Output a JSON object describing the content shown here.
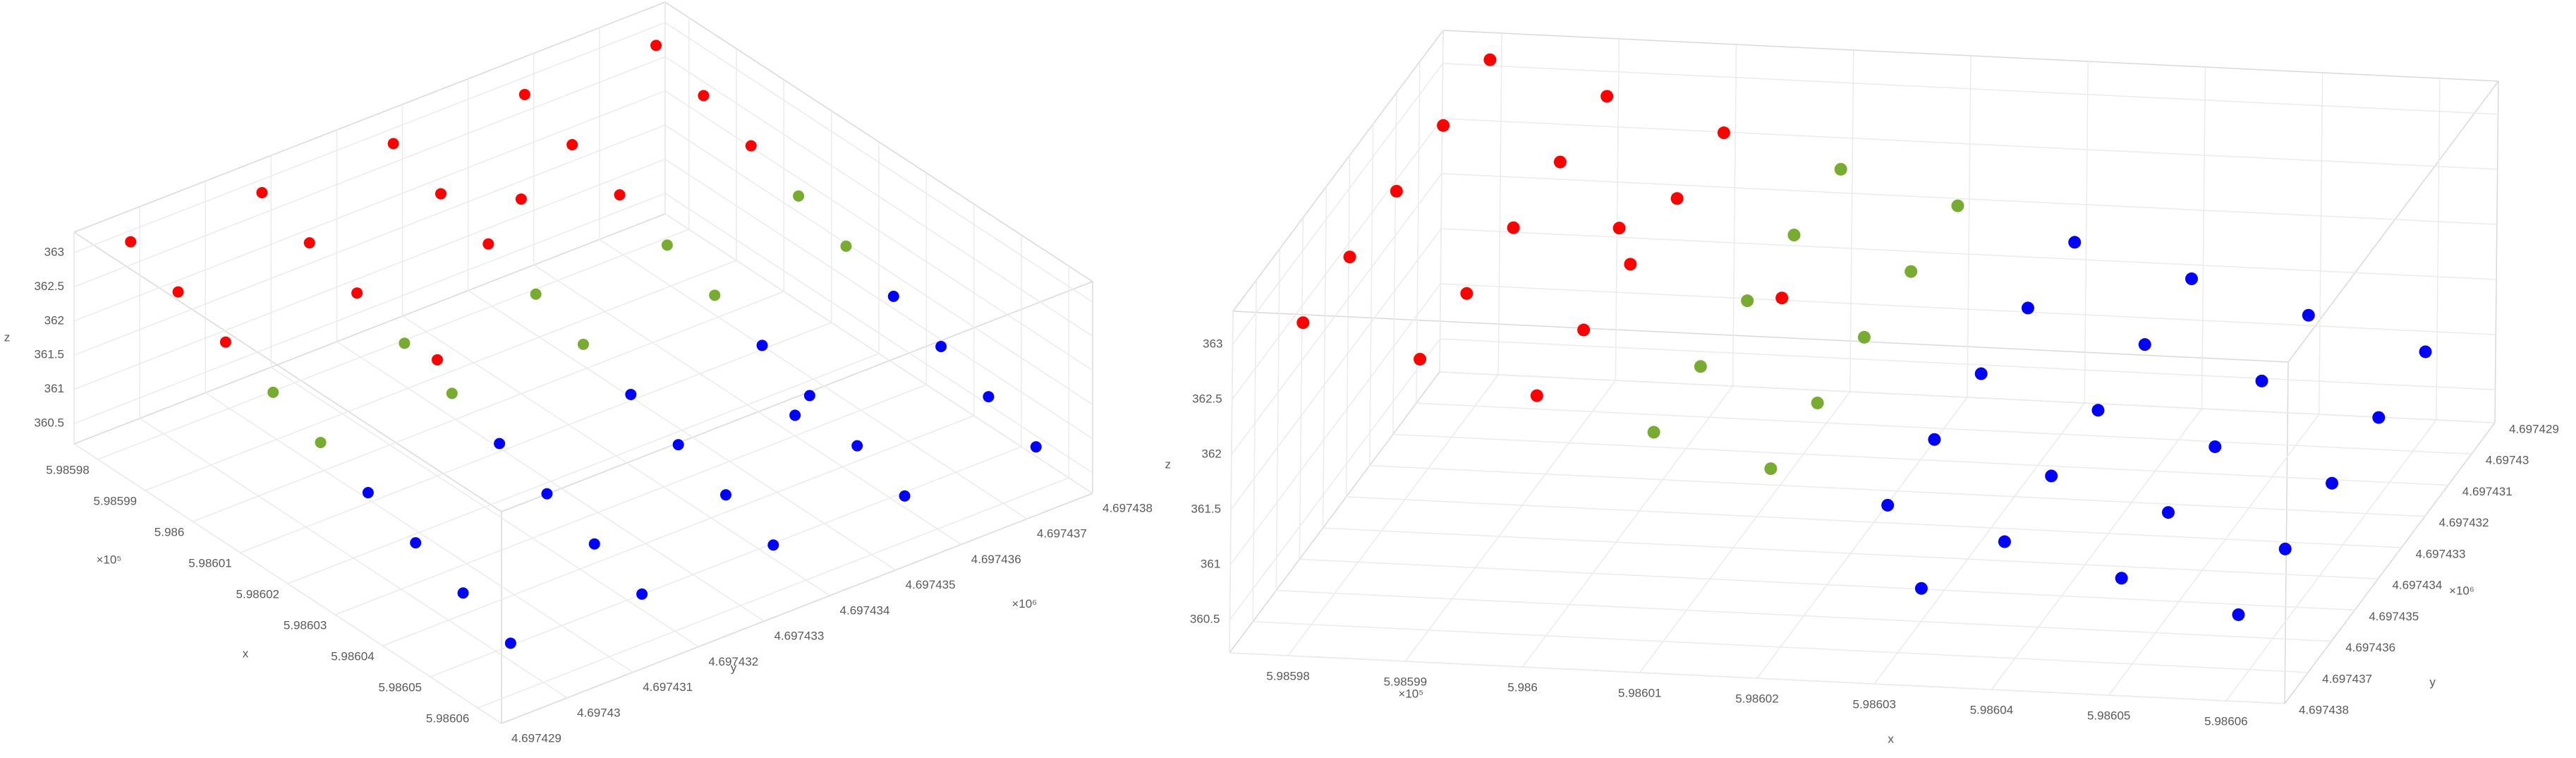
{
  "chart_data": [
    {
      "type": "scatter3d",
      "xlabel": "x",
      "ylabel": "y",
      "zlabel": "z",
      "x_exponent": "×10⁵",
      "y_exponent": "×10⁶",
      "xlim": [
        5.985975,
        5.986065
      ],
      "ylim": [
        4.697429,
        4.697438
      ],
      "zlim": [
        360.2,
        363.3
      ],
      "xticks": [
        5.98598,
        5.98599,
        5.986,
        5.98601,
        5.98602,
        5.98603,
        5.98604,
        5.98605,
        5.98606
      ],
      "yticks": [
        4.697429,
        4.69743,
        4.697431,
        4.697432,
        4.697433,
        4.697434,
        4.697435,
        4.697436,
        4.697437,
        4.697438
      ],
      "zticks": [
        360.5,
        361,
        361.5,
        362,
        362.5,
        363
      ],
      "grid": true,
      "series": [
        {
          "color": "#ff0000",
          "x": [
            5.98598,
            5.98598,
            5.98598,
            5.98598,
            5.98598,
            5.98599,
            5.98599,
            5.98599,
            5.98599,
            5.98599,
            5.986,
            5.986,
            5.986,
            5.986,
            5.986,
            5.98601,
            5.986
          ],
          "y": [
            4.6974295,
            4.6974315,
            4.6974335,
            4.6974355,
            4.6974375,
            4.6974295,
            4.6974315,
            4.6974335,
            4.6974355,
            4.6974375,
            4.6974295,
            4.6974315,
            4.6974335,
            4.6974355,
            4.6974375,
            4.697432,
            4.697434
          ],
          "z": [
            363.2,
            363.17,
            363.14,
            363.11,
            363.08,
            362.92,
            362.89,
            362.86,
            362.83,
            362.8,
            362.64,
            362.61,
            362.58,
            362.55,
            362.52,
            361.9,
            363.05
          ]
        },
        {
          "color": "#77ac30",
          "x": [
            5.98601,
            5.98601,
            5.98601,
            5.98601,
            5.98601,
            5.98602,
            5.98602,
            5.98602,
            5.98602,
            5.98602
          ],
          "y": [
            4.6974295,
            4.6974315,
            4.6974335,
            4.6974355,
            4.6974375,
            4.6974295,
            4.6974315,
            4.6974335,
            4.6974355,
            4.6974375
          ],
          "z": [
            362.36,
            362.33,
            362.3,
            362.27,
            362.24,
            362.08,
            362.05,
            362.02,
            361.99,
            361.96
          ]
        },
        {
          "color": "#0000ff",
          "x": [
            5.98603,
            5.98603,
            5.98603,
            5.98603,
            5.98603,
            5.98604,
            5.98604,
            5.98604,
            5.98604,
            5.98604,
            5.98605,
            5.98605,
            5.98605,
            5.98605,
            5.98605,
            5.98606,
            5.98606,
            5.98606,
            5.98606,
            5.98606,
            5.98603
          ],
          "y": [
            4.6974295,
            4.6974315,
            4.6974335,
            4.6974355,
            4.6974375,
            4.6974295,
            4.6974315,
            4.6974335,
            4.6974355,
            4.6974375,
            4.6974295,
            4.6974315,
            4.6974335,
            4.6974355,
            4.6974375,
            4.6974295,
            4.6974315,
            4.6974335,
            4.6974355,
            4.6974375,
            4.697436
          ],
          "z": [
            361.8,
            361.77,
            361.74,
            361.71,
            361.68,
            361.52,
            361.49,
            361.46,
            361.43,
            361.4,
            361.24,
            361.21,
            361.18,
            361.15,
            361.12,
            360.96,
            360.93,
            360.9,
            360.87,
            360.84,
            360.5
          ]
        }
      ]
    },
    {
      "type": "scatter3d",
      "xlabel": "x",
      "ylabel": "y",
      "zlabel": "z",
      "x_exponent": "×10⁵",
      "y_exponent": "×10⁶",
      "xlim": [
        5.985975,
        5.986065
      ],
      "ylim": [
        4.697429,
        4.697438
      ],
      "zlim": [
        360.2,
        363.3
      ],
      "xticks": [
        5.98598,
        5.98599,
        5.986,
        5.98601,
        5.98602,
        5.98603,
        5.98604,
        5.98605,
        5.98606
      ],
      "yticks": [
        4.697429,
        4.69743,
        4.697431,
        4.697432,
        4.697433,
        4.697434,
        4.697435,
        4.697436,
        4.697437,
        4.697438
      ],
      "zticks": [
        360.5,
        361,
        361.5,
        362,
        362.5,
        363
      ],
      "grid": true,
      "series": [
        {
          "color": "#ff0000",
          "x": [
            5.98598,
            5.98598,
            5.98598,
            5.98598,
            5.98598,
            5.98599,
            5.98599,
            5.98599,
            5.98599,
            5.98599,
            5.986,
            5.986,
            5.986,
            5.986,
            5.986,
            5.98601,
            5.986
          ],
          "y": [
            4.6974295,
            4.6974315,
            4.6974335,
            4.6974355,
            4.6974375,
            4.6974295,
            4.6974315,
            4.6974335,
            4.6974355,
            4.6974375,
            4.6974295,
            4.6974315,
            4.6974335,
            4.6974355,
            4.6974375,
            4.697432,
            4.697434
          ],
          "z": [
            363.2,
            363.17,
            363.14,
            363.11,
            363.08,
            362.92,
            362.89,
            362.86,
            362.83,
            362.8,
            362.64,
            362.61,
            362.58,
            362.55,
            362.52,
            361.9,
            363.05
          ]
        },
        {
          "color": "#77ac30",
          "x": [
            5.98601,
            5.98601,
            5.98601,
            5.98601,
            5.98601,
            5.98602,
            5.98602,
            5.98602,
            5.98602,
            5.98602
          ],
          "y": [
            4.6974295,
            4.6974315,
            4.6974335,
            4.6974355,
            4.6974375,
            4.6974295,
            4.6974315,
            4.6974335,
            4.6974355,
            4.6974375
          ],
          "z": [
            362.36,
            362.33,
            362.3,
            362.27,
            362.24,
            362.08,
            362.05,
            362.02,
            361.99,
            361.96
          ]
        },
        {
          "color": "#0000ff",
          "x": [
            5.98603,
            5.98603,
            5.98603,
            5.98603,
            5.98603,
            5.98604,
            5.98604,
            5.98604,
            5.98604,
            5.98604,
            5.98605,
            5.98605,
            5.98605,
            5.98605,
            5.98605,
            5.98606,
            5.98606,
            5.98606,
            5.98606,
            5.98606,
            5.98603
          ],
          "y": [
            4.6974295,
            4.6974315,
            4.6974335,
            4.6974355,
            4.6974375,
            4.6974295,
            4.6974315,
            4.6974335,
            4.6974355,
            4.6974375,
            4.6974295,
            4.6974315,
            4.6974335,
            4.6974355,
            4.6974375,
            4.6974295,
            4.6974315,
            4.6974335,
            4.6974355,
            4.6974375,
            4.697436
          ],
          "z": [
            361.8,
            361.77,
            361.74,
            361.71,
            361.68,
            361.52,
            361.49,
            361.46,
            361.43,
            361.4,
            361.24,
            361.21,
            361.18,
            361.15,
            361.12,
            360.96,
            360.93,
            360.9,
            360.87,
            360.84,
            360.5
          ]
        }
      ]
    }
  ]
}
